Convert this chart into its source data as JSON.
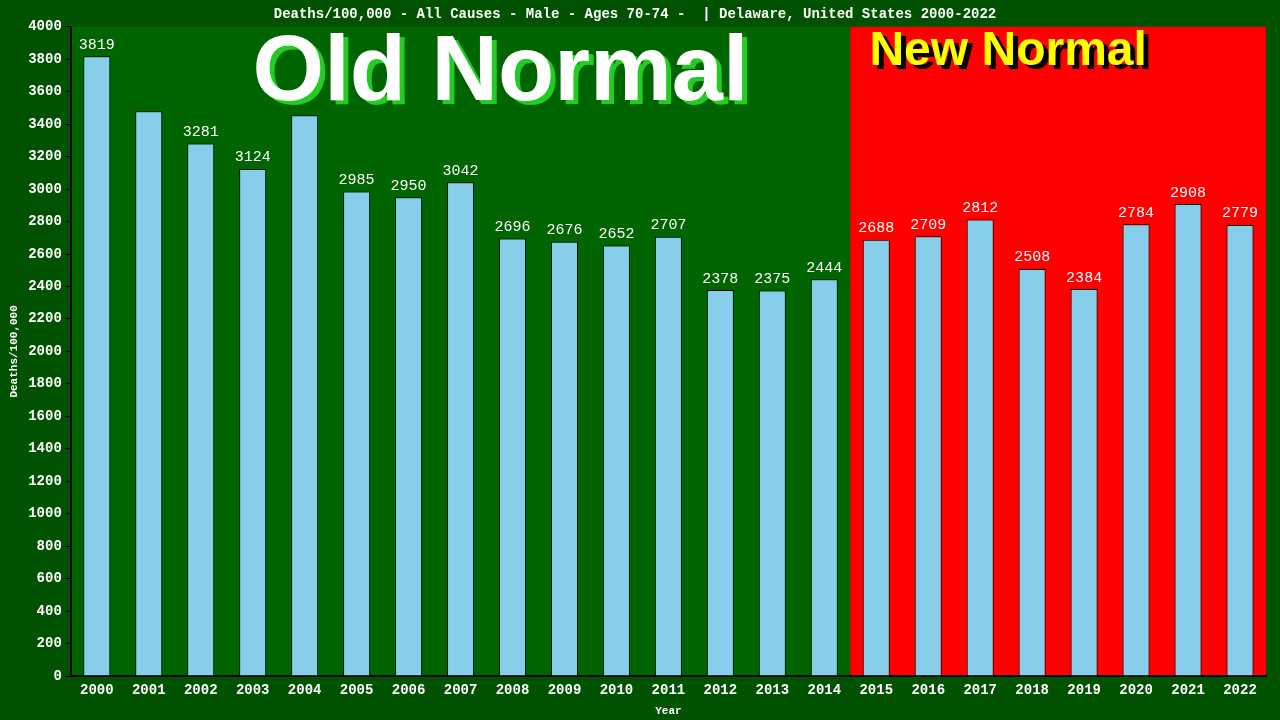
{
  "chart_data": {
    "type": "bar",
    "title": "Deaths/100,000 - All Causes - Male - Ages 70-74 -  | Delaware, United States 2000-2022",
    "xlabel": "Year",
    "ylabel": "Deaths/100,000",
    "categories": [
      "2000",
      "2001",
      "2002",
      "2003",
      "2004",
      "2005",
      "2006",
      "2007",
      "2008",
      "2009",
      "2010",
      "2011",
      "2012",
      "2013",
      "2014",
      "2015",
      "2016",
      "2017",
      "2018",
      "2019",
      "2020",
      "2021",
      "2022"
    ],
    "values": [
      3819,
      3480,
      3281,
      3124,
      3455,
      2985,
      2950,
      3042,
      2696,
      2676,
      2652,
      2707,
      2378,
      2375,
      2444,
      2688,
      2709,
      2812,
      2508,
      2384,
      2784,
      2908,
      2779
    ],
    "value_labels": [
      "3819",
      null,
      "3281",
      "3124",
      null,
      "2985",
      "2950",
      "3042",
      "2696",
      "2676",
      "2652",
      "2707",
      "2378",
      "2375",
      "2444",
      "2688",
      "2709",
      "2812",
      "2508",
      "2384",
      "2784",
      "2908",
      "2779"
    ],
    "color": "#87ceeb",
    "ylim": [
      0,
      4000
    ],
    "yticks": [
      0,
      200,
      400,
      600,
      800,
      1000,
      1200,
      1400,
      1600,
      1800,
      2000,
      2200,
      2400,
      2600,
      2800,
      3000,
      3200,
      3400,
      3600,
      3800,
      4000
    ],
    "bands": [
      {
        "axis": "x",
        "from": "2000",
        "to": "2014",
        "label": "Old Normal",
        "color": "#006400"
      },
      {
        "axis": "x",
        "from": "2015",
        "to": "2022",
        "label": "New Normal",
        "color": "#ff0000"
      }
    ],
    "grid": false,
    "legend": false
  }
}
